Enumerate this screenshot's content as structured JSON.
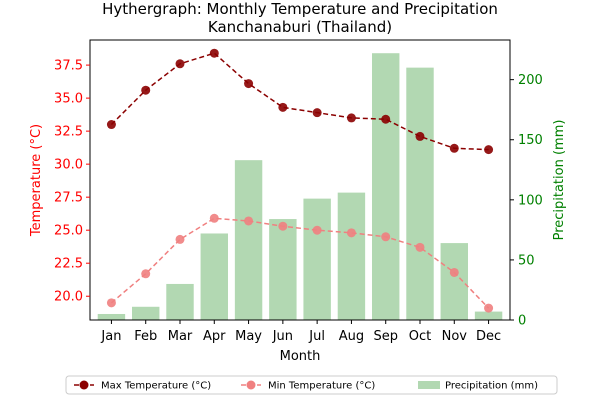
{
  "chart_data": {
    "type": "bar+line",
    "title": "Hythergraph: Monthly Temperature and Precipitation\nKanchanaburi (Thailand)",
    "title_lines": [
      "Hythergraph: Monthly Temperature and Precipitation",
      "Kanchanaburi (Thailand)"
    ],
    "xlabel": "Month",
    "ylabel_left": "Temperature (°C)",
    "ylabel_right": "Precipitation (mm)",
    "categories": [
      "Jan",
      "Feb",
      "Mar",
      "Apr",
      "May",
      "Jun",
      "Jul",
      "Aug",
      "Sep",
      "Oct",
      "Nov",
      "Dec"
    ],
    "temp_ylim": [
      18.2,
      39.4
    ],
    "temp_ticks": [
      "20.0",
      "22.5",
      "25.0",
      "27.5",
      "30.0",
      "32.5",
      "35.0",
      "37.5"
    ],
    "precip_ylim": [
      0,
      233
    ],
    "precip_ticks": [
      "0",
      "50",
      "100",
      "150",
      "200"
    ],
    "series": [
      {
        "name": "Max Temperature (°C)",
        "kind": "line",
        "axis": "left",
        "color": "#8b0000",
        "linestyle": "dashed",
        "values": [
          33.0,
          35.6,
          37.6,
          38.4,
          36.1,
          34.3,
          33.9,
          33.5,
          33.4,
          32.1,
          31.2,
          31.1
        ]
      },
      {
        "name": "Min Temperature (°C)",
        "kind": "line",
        "axis": "left",
        "color": "#f08080",
        "linestyle": "dashed",
        "values": [
          19.5,
          21.7,
          24.3,
          25.9,
          25.7,
          25.3,
          25.0,
          24.8,
          24.5,
          23.7,
          21.8,
          19.1
        ]
      },
      {
        "name": "Precipitation (mm)",
        "kind": "bar",
        "axis": "right",
        "color": "#b2d8b2",
        "values": [
          5,
          11,
          30,
          72,
          133,
          84,
          101,
          106,
          222,
          210,
          64,
          7
        ]
      }
    ],
    "legend_position": "bottom-center",
    "colors": {
      "left_axis": "#ff0000",
      "right_axis": "#008000"
    }
  }
}
